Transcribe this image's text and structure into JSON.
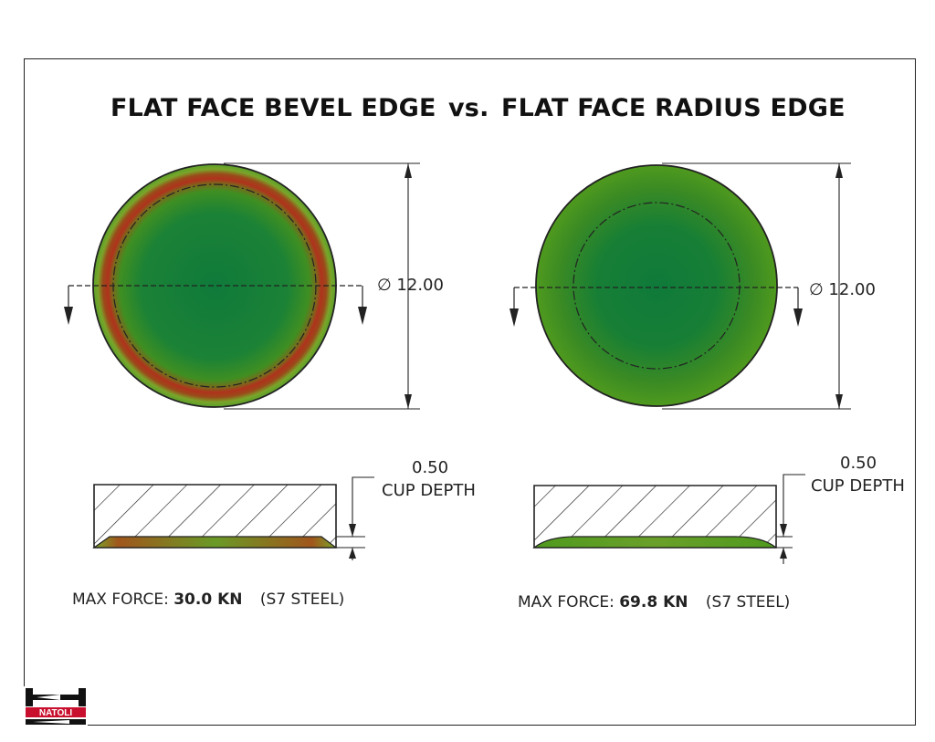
{
  "titles": {
    "left": "FLAT FACE BEVEL EDGE",
    "vs": "vs.",
    "right": "FLAT FACE RADIUS EDGE"
  },
  "dimensions": {
    "diameter_symbol": "∅",
    "left_diameter": "12.00",
    "right_diameter": "12.00",
    "left_cup_depth_value": "0.50",
    "left_cup_depth_label": "CUP DEPTH",
    "right_cup_depth_value": "0.50",
    "right_cup_depth_label": "CUP DEPTH"
  },
  "captions": {
    "left": {
      "label": "MAX FORCE:",
      "value": "30.0 KN",
      "material": "(S7 STEEL)"
    },
    "right": {
      "label": "MAX FORCE:",
      "value": "69.8 KN",
      "material": "(S7 STEEL)"
    }
  },
  "logo": {
    "text": "NATOLI"
  },
  "colors": {
    "green_center": "#0f7a3a",
    "green_edge": "#4f9a1e",
    "stress_red": "#b0321c",
    "line": "#222222"
  }
}
